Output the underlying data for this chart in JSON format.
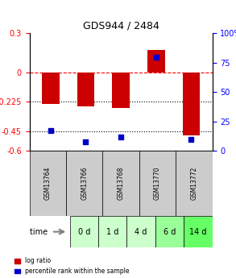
{
  "title": "GDS944 / 2484",
  "samples": [
    "GSM13764",
    "GSM13766",
    "GSM13768",
    "GSM13770",
    "GSM13772"
  ],
  "time_labels": [
    "0 d",
    "1 d",
    "4 d",
    "6 d",
    "14 d"
  ],
  "log_ratios": [
    -0.24,
    -0.26,
    -0.27,
    0.17,
    -0.48
  ],
  "percentile_ranks": [
    17,
    8,
    12,
    80,
    10
  ],
  "ylim_left": [
    -0.6,
    0.3
  ],
  "ylim_right": [
    0,
    100
  ],
  "yticks_left": [
    -0.6,
    -0.45,
    -0.225,
    0,
    0.3
  ],
  "ytick_labels_left": [
    "-0.6",
    "-0.45",
    "-0.225",
    "0",
    "0.3"
  ],
  "yticks_right": [
    0,
    25,
    50,
    75,
    100
  ],
  "ytick_labels_right": [
    "0",
    "25",
    "50",
    "75",
    "100%"
  ],
  "hlines_dotted": [
    -0.225,
    -0.45
  ],
  "hline_dash": 0,
  "bar_color": "#cc0000",
  "dot_color": "#0000cc",
  "bar_width": 0.5,
  "gsm_bg_color": "#cccccc",
  "time_bg_colors": [
    "#ccffcc",
    "#ccffcc",
    "#ccffcc",
    "#99ff99",
    "#66ff66"
  ],
  "legend_labels": [
    "log ratio",
    "percentile rank within the sample"
  ],
  "legend_colors": [
    "#cc0000",
    "#0000cc"
  ],
  "time_arrow_label": "time"
}
